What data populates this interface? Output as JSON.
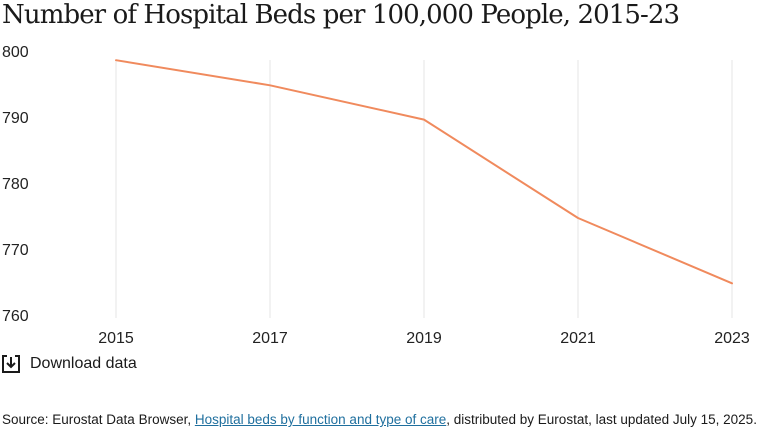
{
  "title": "Number of Hospital Beds per 100,000 People, 2015-23",
  "download": {
    "label": "Download data",
    "icon": "download-icon"
  },
  "source": {
    "prefix": "Source: Eurostat Data Browser, ",
    "link_text": "Hospital beds by function and type of care",
    "suffix": ", distributed by Eurostat, last updated July 15, 2025."
  },
  "colors": {
    "line": "#f08a5d",
    "grid": "#e6e6e6",
    "link": "#1f6f9e"
  },
  "chart_data": {
    "type": "line",
    "title": "Number of Hospital Beds per 100,000 People, 2015-23",
    "xlabel": "",
    "ylabel": "",
    "x_ticks": [
      "2015",
      "2017",
      "2019",
      "2021",
      "2023"
    ],
    "y_ticks": [
      "800",
      "790",
      "780",
      "770",
      "760"
    ],
    "ylim": [
      760,
      800
    ],
    "grid": "vertical",
    "series": [
      {
        "x": [
          2015,
          2017,
          2019,
          2021,
          2023
        ],
        "values": [
          798.6,
          794.8,
          789.6,
          774.7,
          764.8
        ]
      }
    ]
  }
}
